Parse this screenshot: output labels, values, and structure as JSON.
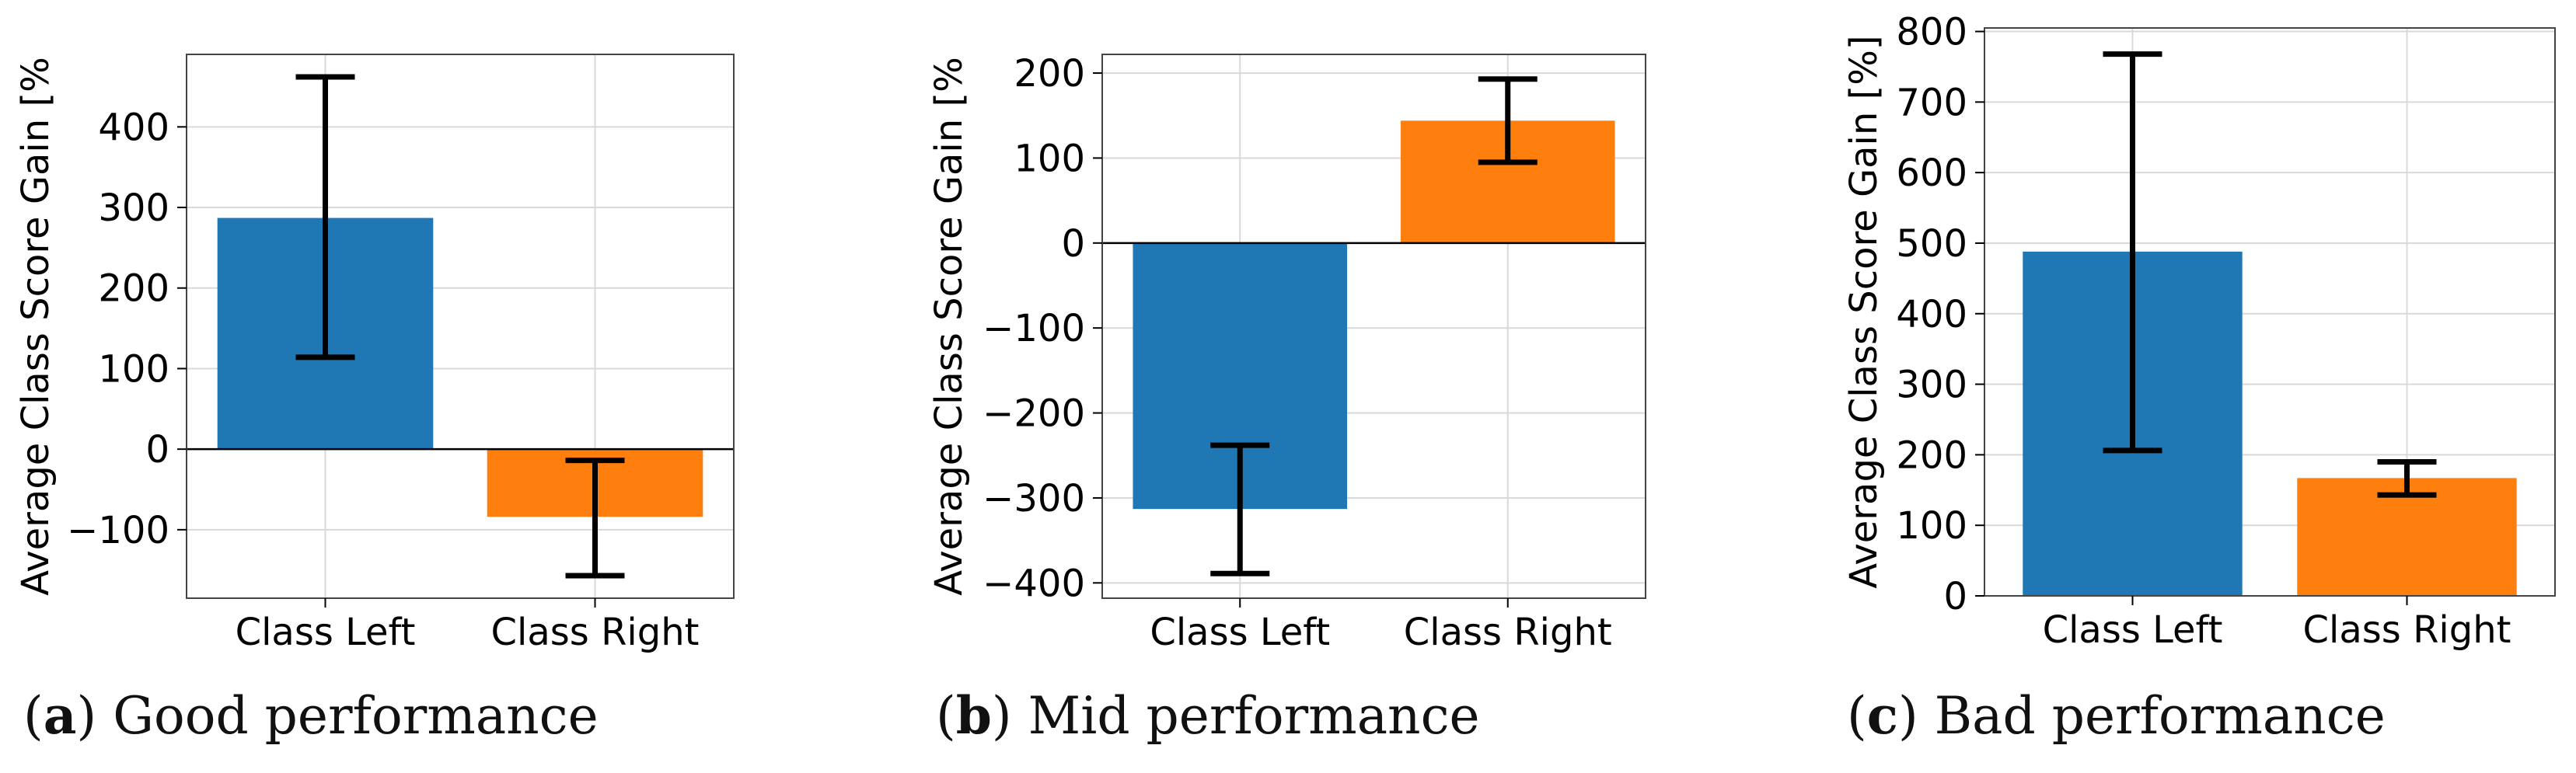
{
  "chart_data": [
    {
      "type": "bar",
      "categories": [
        "Class Left",
        "Class Right"
      ],
      "values": [
        287,
        -84
      ],
      "error_low": [
        114,
        -157
      ],
      "error_high": [
        462,
        -14
      ],
      "colors": [
        "#1f77b4",
        "#ff7f0e"
      ],
      "ylabel": "Average Class Score Gain [%",
      "ylim": [
        -185,
        490
      ],
      "yticks": [
        -100,
        0,
        100,
        200,
        300,
        400
      ],
      "ytick_labels": [
        "−100",
        "0",
        "100",
        "200",
        "300",
        "400"
      ],
      "grid": true,
      "caption_letter": "a",
      "caption_text": "Good performance"
    },
    {
      "type": "bar",
      "categories": [
        "Class Left",
        "Class Right"
      ],
      "values": [
        -313,
        144
      ],
      "error_low": [
        -389,
        95
      ],
      "error_high": [
        -238,
        193
      ],
      "colors": [
        "#1f77b4",
        "#ff7f0e"
      ],
      "ylabel": "Average Class Score Gain [%",
      "ylim": [
        -418,
        222
      ],
      "yticks": [
        -400,
        -300,
        -200,
        -100,
        0,
        100,
        200
      ],
      "ytick_labels": [
        "−400",
        "−300",
        "−200",
        "−100",
        "0",
        "100",
        "200"
      ],
      "grid": true,
      "caption_letter": "b",
      "caption_text": "Mid performance"
    },
    {
      "type": "bar",
      "categories": [
        "Class Left",
        "Class Right"
      ],
      "values": [
        488,
        167
      ],
      "error_low": [
        206,
        143
      ],
      "error_high": [
        768,
        190
      ],
      "colors": [
        "#1f77b4",
        "#ff7f0e"
      ],
      "ylabel": "Average Class Score Gain [%]",
      "ylim": [
        0,
        805
      ],
      "yticks": [
        0,
        100,
        200,
        300,
        400,
        500,
        600,
        700,
        800
      ],
      "ytick_labels": [
        "0",
        "100",
        "200",
        "300",
        "400",
        "500",
        "600",
        "700",
        "800"
      ],
      "grid": true,
      "caption_letter": "c",
      "caption_text": "Bad performance"
    }
  ]
}
